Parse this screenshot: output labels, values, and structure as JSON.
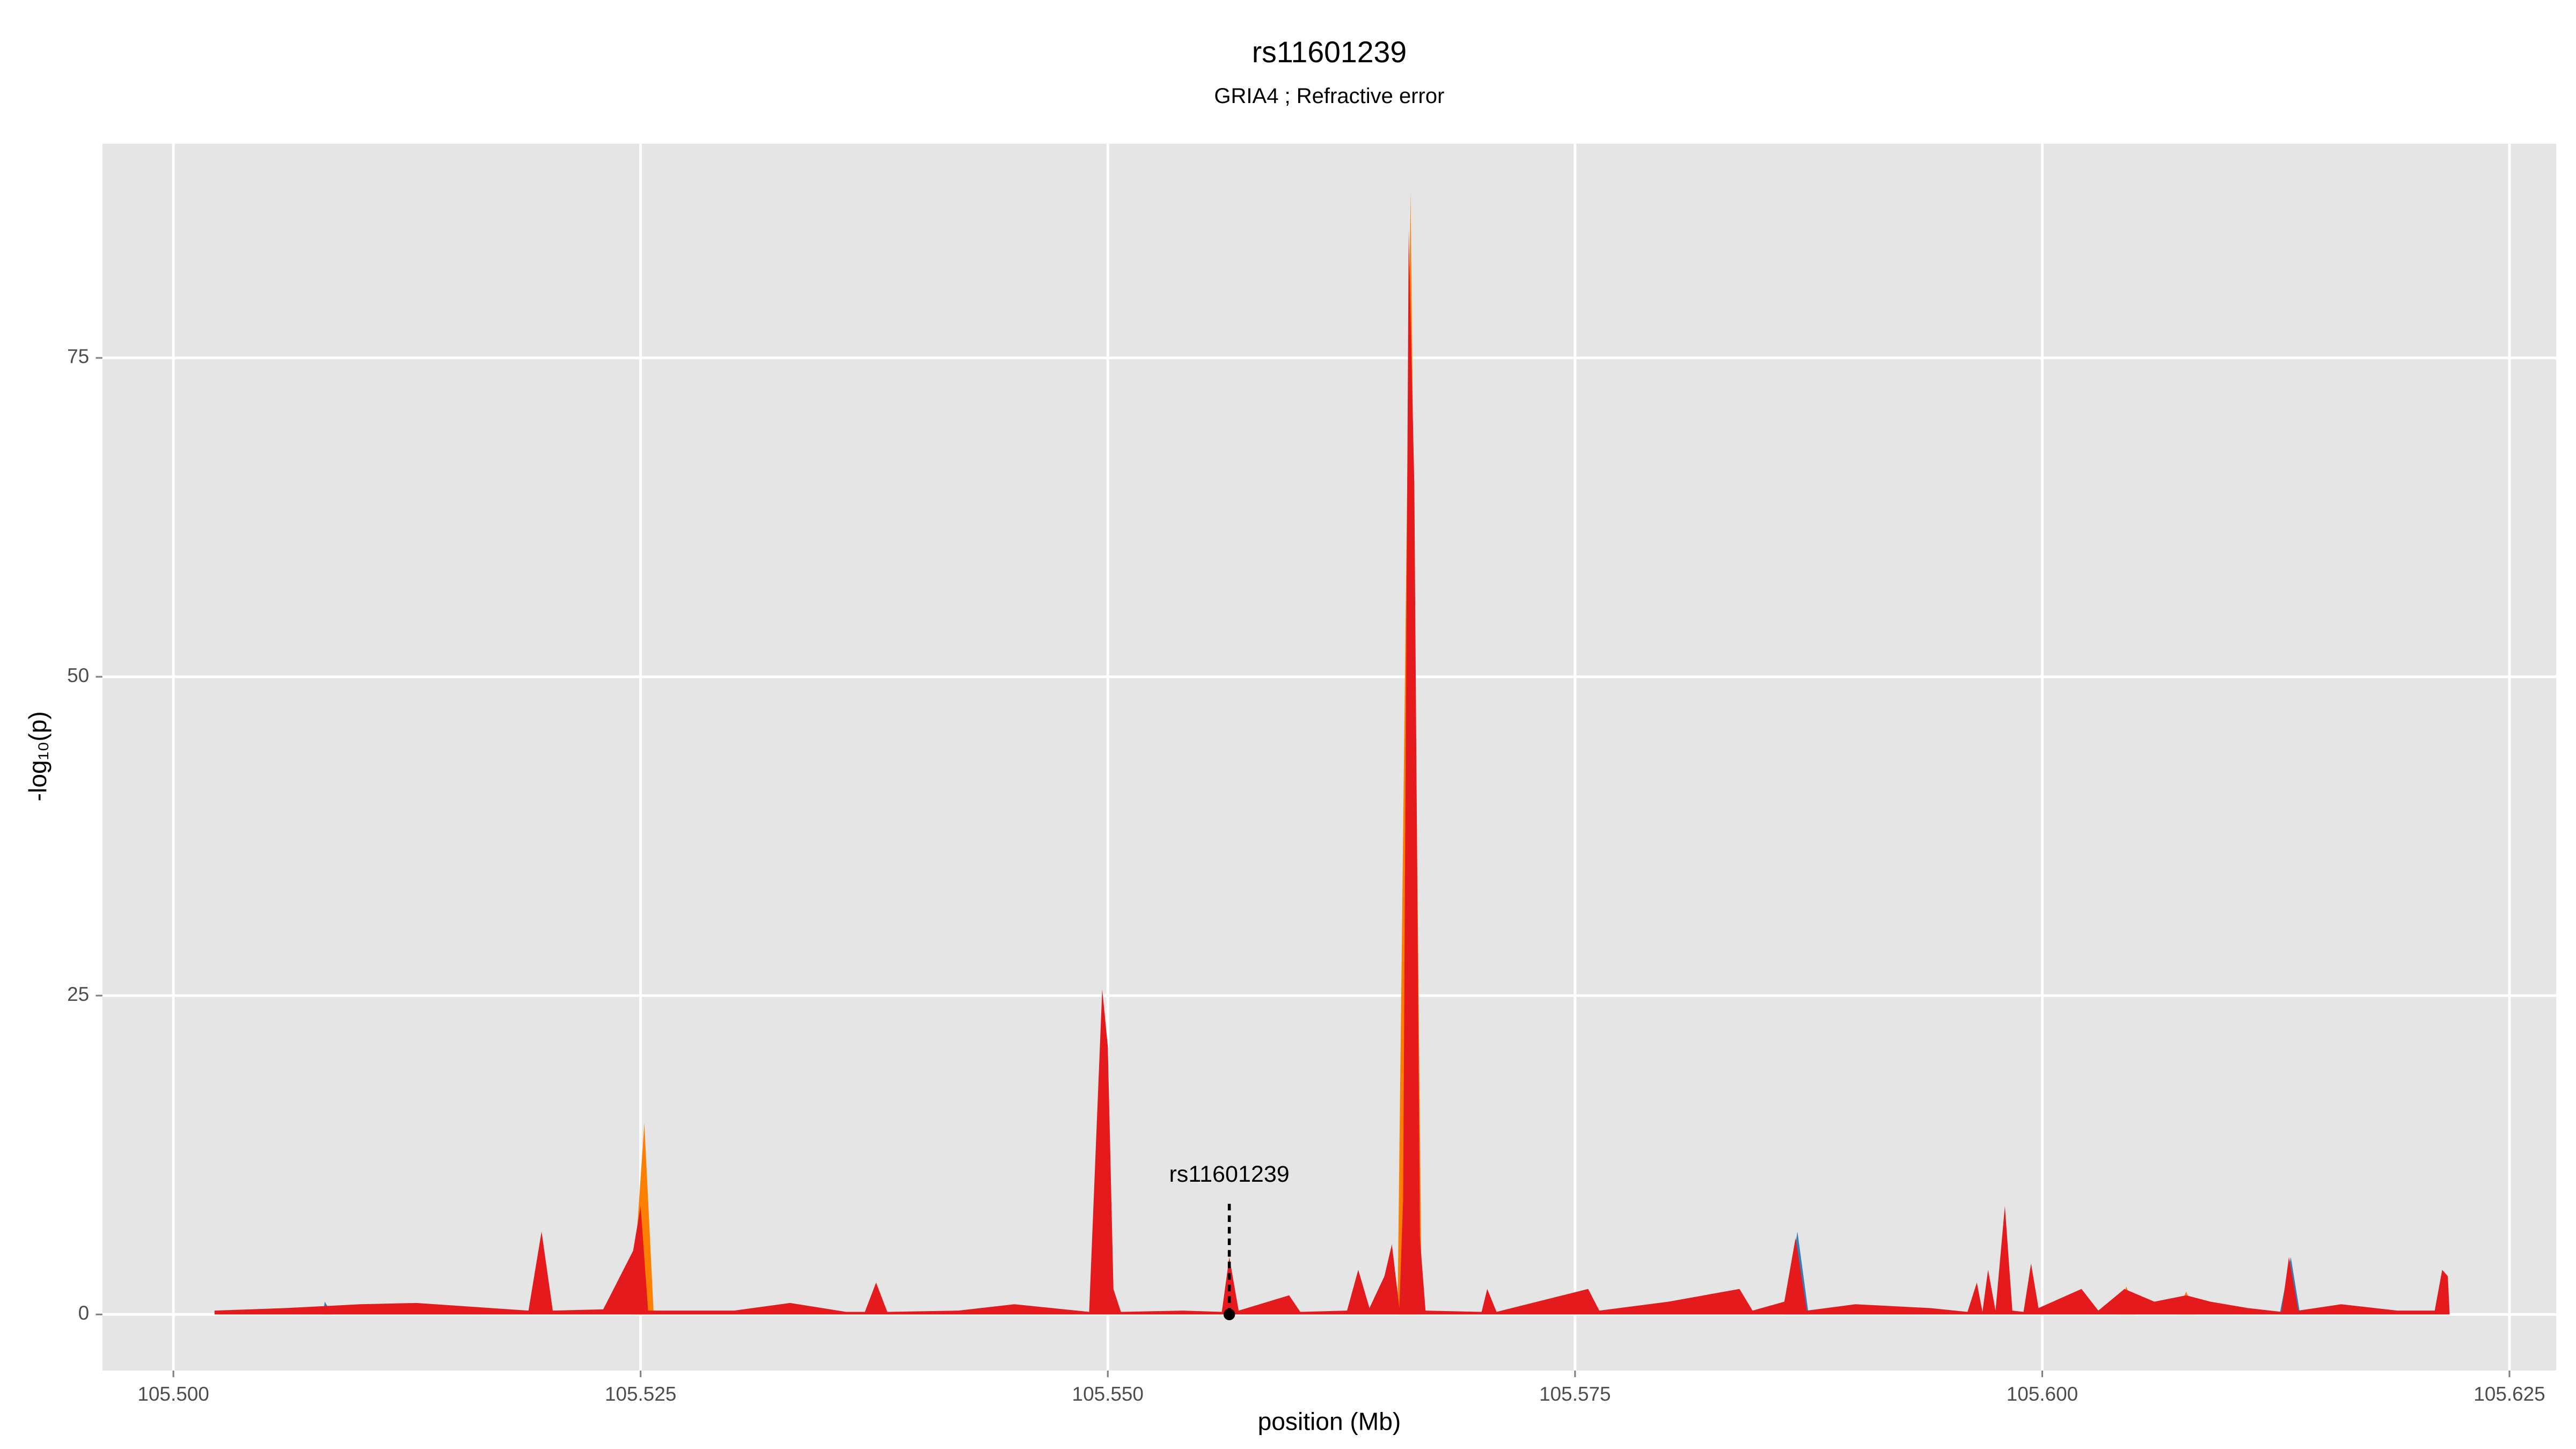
{
  "chart_data": {
    "type": "area",
    "title": "rs11601239",
    "subtitle": "GRIA4 ; Refractive error",
    "x_label": "position (Mb)",
    "y_label": "-log₁₀(p)",
    "xlim": [
      105.4962,
      105.6275
    ],
    "ylim": [
      -4.4,
      91.8
    ],
    "xticks": [
      {
        "value": 105.5,
        "label": "105.500"
      },
      {
        "value": 105.525,
        "label": "105.525"
      },
      {
        "value": 105.55,
        "label": "105.550"
      },
      {
        "value": 105.575,
        "label": "105.575"
      },
      {
        "value": 105.6,
        "label": "105.600"
      },
      {
        "value": 105.625,
        "label": "105.625"
      }
    ],
    "yticks": [
      0,
      25,
      50,
      75
    ],
    "grid": true,
    "background": "#e5e5e5",
    "series": [
      {
        "color": "#377eb8",
        "x": [
          105.508,
          105.5081,
          105.5085,
          null,
          105.5862,
          105.5869,
          105.5875,
          null,
          105.6127,
          105.6133,
          105.6138
        ],
        "values": [
          0,
          1,
          0,
          null,
          0,
          6.5,
          0,
          null,
          0,
          4.5,
          0
        ]
      },
      {
        "color": "#ff7f00",
        "x": [
          105.5245,
          105.5252,
          105.5257,
          null,
          105.5655,
          105.5662,
          105.5668,
          null,
          105.604,
          105.6045,
          105.605,
          null,
          105.6072,
          105.6077,
          105.6082
        ],
        "values": [
          0,
          15,
          0,
          null,
          0,
          88,
          0,
          null,
          0,
          2.2,
          0,
          null,
          0,
          1.8,
          0
        ]
      },
      {
        "color": "#e41a1c",
        "x": [
          105.5022,
          105.506,
          105.51,
          105.513,
          105.516,
          105.519,
          105.5197,
          105.5203,
          105.523,
          105.5246,
          105.525,
          105.5254,
          105.53,
          105.533,
          105.536,
          105.537,
          105.5376,
          105.5382,
          105.542,
          105.545,
          105.549,
          105.5497,
          105.55,
          105.5503,
          105.5507,
          105.554,
          105.5561,
          105.5565,
          105.557,
          105.5597,
          105.5603,
          105.5628,
          105.5634,
          105.564,
          105.5648,
          105.5652,
          105.5656,
          105.5658,
          105.5661,
          105.5664,
          105.5667,
          105.567,
          105.57,
          105.5703,
          105.5708,
          105.5757,
          105.5763,
          105.58,
          105.5838,
          105.5845,
          105.5862,
          105.5868,
          105.5874,
          105.59,
          105.594,
          105.596,
          105.5965,
          105.5968,
          105.5971,
          105.5975,
          105.598,
          105.5984,
          105.599,
          105.5994,
          105.5998,
          105.6021,
          105.603,
          105.6044,
          105.606,
          105.6077,
          105.609,
          105.611,
          105.6128,
          105.6132,
          105.6137,
          105.616,
          105.619,
          105.621,
          105.6214,
          105.6217,
          105.6218
        ],
        "values": [
          0.3,
          0.5,
          0.8,
          0.9,
          0.6,
          0.3,
          6.5,
          0.3,
          0.4,
          5,
          8.5,
          0.3,
          0.3,
          0.9,
          0.2,
          0.2,
          2.5,
          0.2,
          0.3,
          0.8,
          0.2,
          25.5,
          21,
          2,
          0.2,
          0.3,
          0.2,
          4.5,
          0.3,
          1.5,
          0.2,
          0.3,
          3.5,
          0.5,
          3,
          5.5,
          0.5,
          9,
          85,
          65,
          6,
          0.3,
          0.2,
          2,
          0.2,
          2,
          0.3,
          1,
          2,
          0.3,
          1,
          6,
          0.3,
          0.8,
          0.5,
          0.2,
          2.5,
          0.2,
          3.5,
          0.3,
          8.5,
          0.3,
          0.2,
          4,
          0.5,
          2,
          0.3,
          2,
          1,
          1.5,
          1,
          0.5,
          0.2,
          4.5,
          0.3,
          0.8,
          0.3,
          0.3,
          3.5,
          3,
          0
        ]
      }
    ],
    "annotation": {
      "text": "rs11601239",
      "x": 105.5565,
      "y": 0
    }
  }
}
